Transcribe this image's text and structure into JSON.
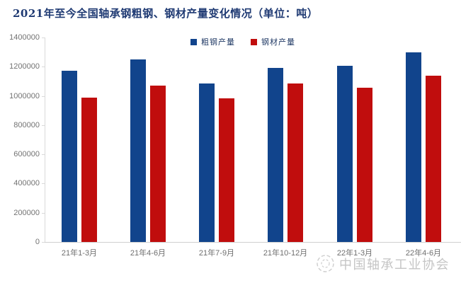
{
  "title": "2021年至今全国轴承钢粗钢、钢材产量变化情况（单位：吨）",
  "legend": [
    {
      "label": "粗钢产量",
      "color": "#11448c"
    },
    {
      "label": "钢材产量",
      "color": "#c00d0d"
    }
  ],
  "footer": {
    "org_name": "中国轴承工业协会",
    "logo": "bearing-rings-logo"
  },
  "colors": {
    "title": "#1f3a73",
    "crude_steel_blue": "#11448c",
    "steel_products_red": "#c00d0d",
    "axis_line": "#d9d9d9",
    "tick_label_gray": "#737373",
    "watermark_gray": "#c5c5c5"
  },
  "chart_data": {
    "type": "bar",
    "title": "2021年至今全国轴承钢粗钢、钢材产量变化情况（单位：吨）",
    "categories": [
      "21年1-3月",
      "21年4-6月",
      "21年7-9月",
      "21年10-12月",
      "22年1-3月",
      "22年4-6月"
    ],
    "series": [
      {
        "name": "粗钢产量",
        "color": "#11448c",
        "values": [
          1170000,
          1250000,
          1085000,
          1190000,
          1205000,
          1300000
        ]
      },
      {
        "name": "钢材产量",
        "color": "#c00d0d",
        "values": [
          990000,
          1070000,
          985000,
          1085000,
          1055000,
          1140000
        ]
      }
    ],
    "xlabel": "",
    "ylabel": "",
    "ylim": [
      0,
      1400000
    ],
    "ytick_step": 200000,
    "ytick_labels": [
      "0",
      "200000",
      "400000",
      "600000",
      "800000",
      "1000000",
      "1200000",
      "1400000"
    ],
    "grid": false,
    "legend_position": "top-center"
  }
}
